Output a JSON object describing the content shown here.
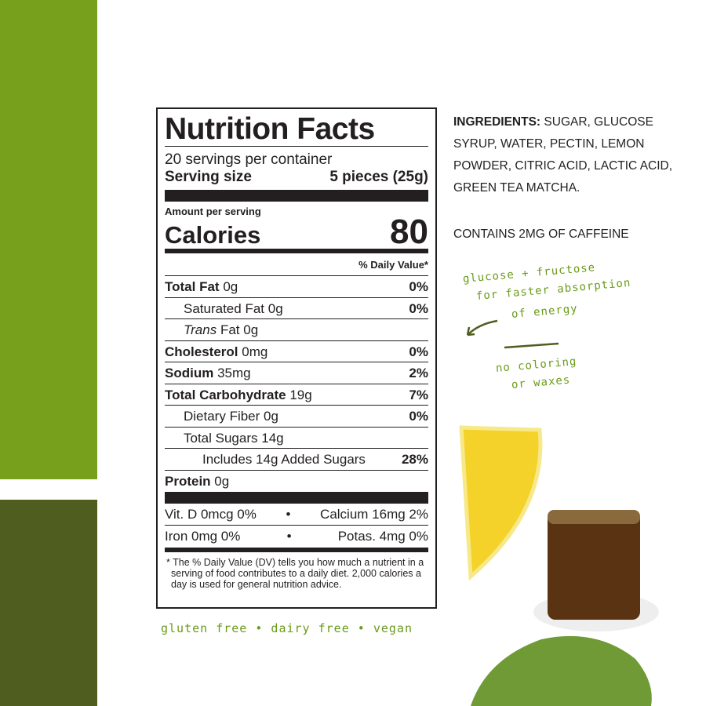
{
  "label": {
    "title": "Nutrition Facts",
    "servings": "20 servings per container",
    "serving_size_label": "Serving size",
    "serving_size_value": "5 pieces (25g)",
    "amount_per_serving": "Amount per serving",
    "calories_label": "Calories",
    "calories_value": "80",
    "daily_value_header": "% Daily Value*",
    "rows": [
      {
        "name": "Total Fat",
        "amount": "0g",
        "dv": "0%",
        "bold": true,
        "indent": 0
      },
      {
        "name": "Saturated Fat",
        "amount": "0g",
        "dv": "0%",
        "bold": false,
        "indent": 1
      },
      {
        "name": "Trans",
        "name_suffix": "Fat",
        "amount": "0g",
        "dv": "",
        "bold": false,
        "indent": 1
      },
      {
        "name": "Cholesterol",
        "amount": "0mg",
        "dv": "0%",
        "bold": true,
        "indent": 0
      },
      {
        "name": "Sodium",
        "amount": "35mg",
        "dv": "2%",
        "bold": true,
        "indent": 0
      },
      {
        "name": "Total Carbohydrate",
        "amount": "19g",
        "dv": "7%",
        "bold": true,
        "indent": 0
      },
      {
        "name": "Dietary Fiber",
        "amount": "0g",
        "dv": "0%",
        "bold": false,
        "indent": 1
      },
      {
        "name": "Total Sugars",
        "amount": "14g",
        "dv": "",
        "bold": false,
        "indent": 1
      },
      {
        "name": "Includes 14g Added Sugars",
        "amount": "",
        "dv": "28%",
        "bold": false,
        "indent": 2
      },
      {
        "name": "Protein",
        "amount": "0g",
        "dv": "",
        "bold": true,
        "indent": 0
      }
    ],
    "vitamins": [
      {
        "left": "Vit. D 0mcg 0%",
        "sep": "•",
        "right": "Calcium 16mg 2%"
      },
      {
        "left": "Iron 0mg 0%",
        "sep": "•",
        "right": "Potas. 4mg 0%"
      }
    ],
    "footnote": "* The % Daily Value (DV) tells you how much a nutrient in a serving of food contributes to a daily diet. 2,000 calories a day is used for general nutrition advice."
  },
  "ingredients": {
    "label": "INGREDIENTS:",
    "text": "SUGAR, GLUCOSE SYRUP, WATER, PECTIN, LEMON POWDER, CITRIC ACID, LACTIC ACID, GREEN TEA MATCHA."
  },
  "caffeine": "CONTAINS 2MG OF CAFFEINE",
  "notes": {
    "line1": "glucose + fructose",
    "line2": "for faster absorption",
    "line3": "of energy",
    "no_color_1": "no coloring",
    "no_color_2": "or waxes"
  },
  "claims": "gluten free • dairy free • vegan",
  "colors": {
    "green_light": "#77a01c",
    "green_dark": "#4f5e1f",
    "handwriting": "#6a9a1a",
    "ink": "#231f20"
  }
}
